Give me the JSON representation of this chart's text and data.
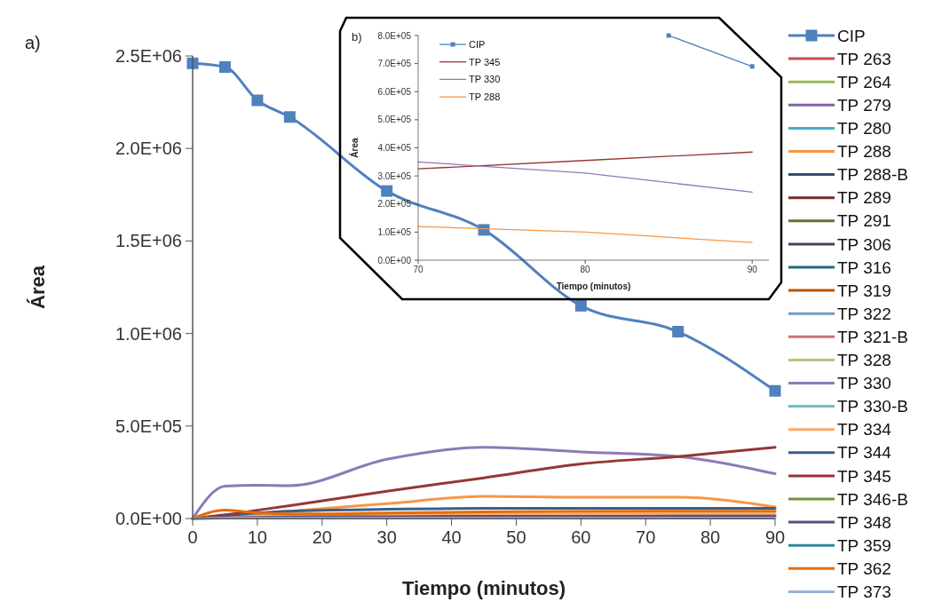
{
  "chart_data": [
    {
      "type": "line",
      "annotations": [
        "a)"
      ],
      "xlabel": "Tiempo (minutos)",
      "ylabel": "Área",
      "x": [
        0,
        5,
        10,
        15,
        30,
        45,
        60,
        75,
        90
      ],
      "xlim": [
        0,
        90
      ],
      "ylim": [
        0,
        2500000
      ],
      "xticks": [
        0,
        10,
        20,
        30,
        40,
        50,
        60,
        70,
        80,
        90
      ],
      "yticks": [
        {
          "value": 0,
          "label": "0.0E+00"
        },
        {
          "value": 500000,
          "label": "5.0E+05"
        },
        {
          "value": 1000000,
          "label": "1.0E+06"
        },
        {
          "value": 1500000,
          "label": "1.5E+06"
        },
        {
          "value": 2000000,
          "label": "2.0E+06"
        },
        {
          "value": 2500000,
          "label": "2.5E+06"
        }
      ],
      "grid": false,
      "legend": "right",
      "series": [
        {
          "name": "CIP",
          "color": "#4f81bd",
          "marker": "square",
          "values": [
            2460000,
            2440000,
            2260000,
            2170000,
            1770000,
            1560000,
            1150000,
            1010000,
            690000
          ]
        },
        {
          "name": "TP 263",
          "color": "#c0504d",
          "values": [
            null,
            null,
            null,
            null,
            null,
            null,
            null,
            null,
            null
          ]
        },
        {
          "name": "TP 264",
          "color": "#9bbb59",
          "values": [
            null,
            null,
            null,
            null,
            null,
            null,
            null,
            null,
            null
          ]
        },
        {
          "name": "TP 279",
          "color": "#8064a2",
          "values": [
            null,
            null,
            null,
            null,
            null,
            null,
            null,
            null,
            null
          ]
        },
        {
          "name": "TP 280",
          "color": "#4bacc6",
          "values": [
            null,
            null,
            null,
            null,
            null,
            null,
            null,
            null,
            null
          ]
        },
        {
          "name": "TP 288",
          "color": "#f79646",
          "values": [
            0,
            15000,
            25000,
            40000,
            80000,
            120000,
            115000,
            115000,
            63000
          ]
        },
        {
          "name": "TP 288-B",
          "color": "#2c4d75",
          "values": [
            null,
            null,
            null,
            null,
            null,
            null,
            null,
            null,
            null
          ]
        },
        {
          "name": "TP 289",
          "color": "#772c2a",
          "values": [
            null,
            null,
            null,
            null,
            null,
            null,
            null,
            null,
            null
          ]
        },
        {
          "name": "TP 291",
          "color": "#5f7530",
          "values": [
            null,
            null,
            null,
            null,
            null,
            null,
            null,
            null,
            null
          ]
        },
        {
          "name": "TP 306",
          "color": "#4d3b62",
          "values": [
            null,
            null,
            null,
            null,
            null,
            null,
            null,
            null,
            null
          ]
        },
        {
          "name": "TP 316",
          "color": "#276a7c",
          "values": [
            null,
            null,
            null,
            null,
            null,
            null,
            null,
            null,
            null
          ]
        },
        {
          "name": "TP 319",
          "color": "#b65708",
          "values": [
            null,
            null,
            null,
            null,
            null,
            null,
            null,
            null,
            null
          ]
        },
        {
          "name": "TP 322",
          "color": "#729aca",
          "values": [
            null,
            null,
            null,
            null,
            null,
            null,
            null,
            null,
            null
          ]
        },
        {
          "name": "TP 321-B",
          "color": "#cd7371",
          "values": [
            null,
            null,
            null,
            null,
            null,
            null,
            null,
            null,
            null
          ]
        },
        {
          "name": "TP 328",
          "color": "#afc97a",
          "values": [
            null,
            null,
            null,
            null,
            null,
            null,
            null,
            null,
            null
          ]
        },
        {
          "name": "TP 330",
          "color": "#8e79b8",
          "values": [
            0,
            175000,
            180000,
            178000,
            320000,
            385000,
            360000,
            335000,
            242000
          ]
        },
        {
          "name": "TP 330-B",
          "color": "#6fbdd1",
          "values": [
            null,
            null,
            null,
            null,
            null,
            null,
            null,
            null,
            null
          ]
        },
        {
          "name": "TP 334",
          "color": "#f9ab6b",
          "values": [
            0,
            8000,
            12000,
            15000,
            20000,
            22000,
            24000,
            25000,
            25000
          ]
        },
        {
          "name": "TP 344",
          "color": "#3a5f8b",
          "values": [
            0,
            15000,
            30000,
            40000,
            50000,
            55000,
            55000,
            55000,
            55000
          ]
        },
        {
          "name": "TP 345",
          "color": "#953735",
          "values": [
            0,
            20000,
            45000,
            70000,
            148000,
            220000,
            295000,
            335000,
            385000
          ]
        },
        {
          "name": "TP 346-B",
          "color": "#77933c",
          "values": [
            null,
            null,
            null,
            null,
            null,
            null,
            null,
            null,
            null
          ]
        },
        {
          "name": "TP 348",
          "color": "#604a7b",
          "values": [
            0,
            4000,
            6000,
            8000,
            10000,
            12000,
            12000,
            13000,
            13000
          ]
        },
        {
          "name": "TP 359",
          "color": "#31859c",
          "values": [
            null,
            null,
            null,
            null,
            null,
            null,
            null,
            null,
            null
          ]
        },
        {
          "name": "TP 362",
          "color": "#e46c0a",
          "values": [
            0,
            45000,
            30000,
            25000,
            30000,
            36000,
            38000,
            40000,
            40000
          ]
        },
        {
          "name": "TP 373",
          "color": "#95b3d7",
          "values": [
            0,
            2000,
            3000,
            3000,
            3000,
            3000,
            3000,
            3000,
            3000
          ]
        }
      ]
    },
    {
      "type": "line",
      "annotations": [
        "b)"
      ],
      "xlabel": "Tiempo (minutos)",
      "ylabel": "Área",
      "xlim": [
        70,
        91
      ],
      "ylim": [
        0,
        800000
      ],
      "xticks": [
        70,
        80,
        90
      ],
      "yticks": [
        {
          "value": 0,
          "label": "0.0E+00"
        },
        {
          "value": 100000,
          "label": "1.0E+05"
        },
        {
          "value": 200000,
          "label": "2.0E+05"
        },
        {
          "value": 300000,
          "label": "3.0E+05"
        },
        {
          "value": 400000,
          "label": "4.0E+05"
        },
        {
          "value": 500000,
          "label": "5.0E+05"
        },
        {
          "value": 600000,
          "label": "6.0E+05"
        },
        {
          "value": 700000,
          "label": "7.0E+05"
        },
        {
          "value": 800000,
          "label": "8.0E+05"
        }
      ],
      "grid": false,
      "legend": "top left",
      "series": [
        {
          "name": "CIP",
          "color": "#4f81bd",
          "marker": "square",
          "x": [
            85,
            90
          ],
          "values": [
            800000,
            690000
          ]
        },
        {
          "name": "TP 345",
          "color": "#953735",
          "x": [
            70,
            80,
            90
          ],
          "values": [
            325000,
            355000,
            385000
          ]
        },
        {
          "name": "TP 330",
          "color": "#8e79b8",
          "x": [
            70,
            80,
            90
          ],
          "values": [
            350000,
            310000,
            242000
          ]
        },
        {
          "name": "TP 288",
          "color": "#f79646",
          "x": [
            70,
            80,
            90
          ],
          "values": [
            120000,
            100000,
            63000
          ]
        }
      ]
    }
  ]
}
